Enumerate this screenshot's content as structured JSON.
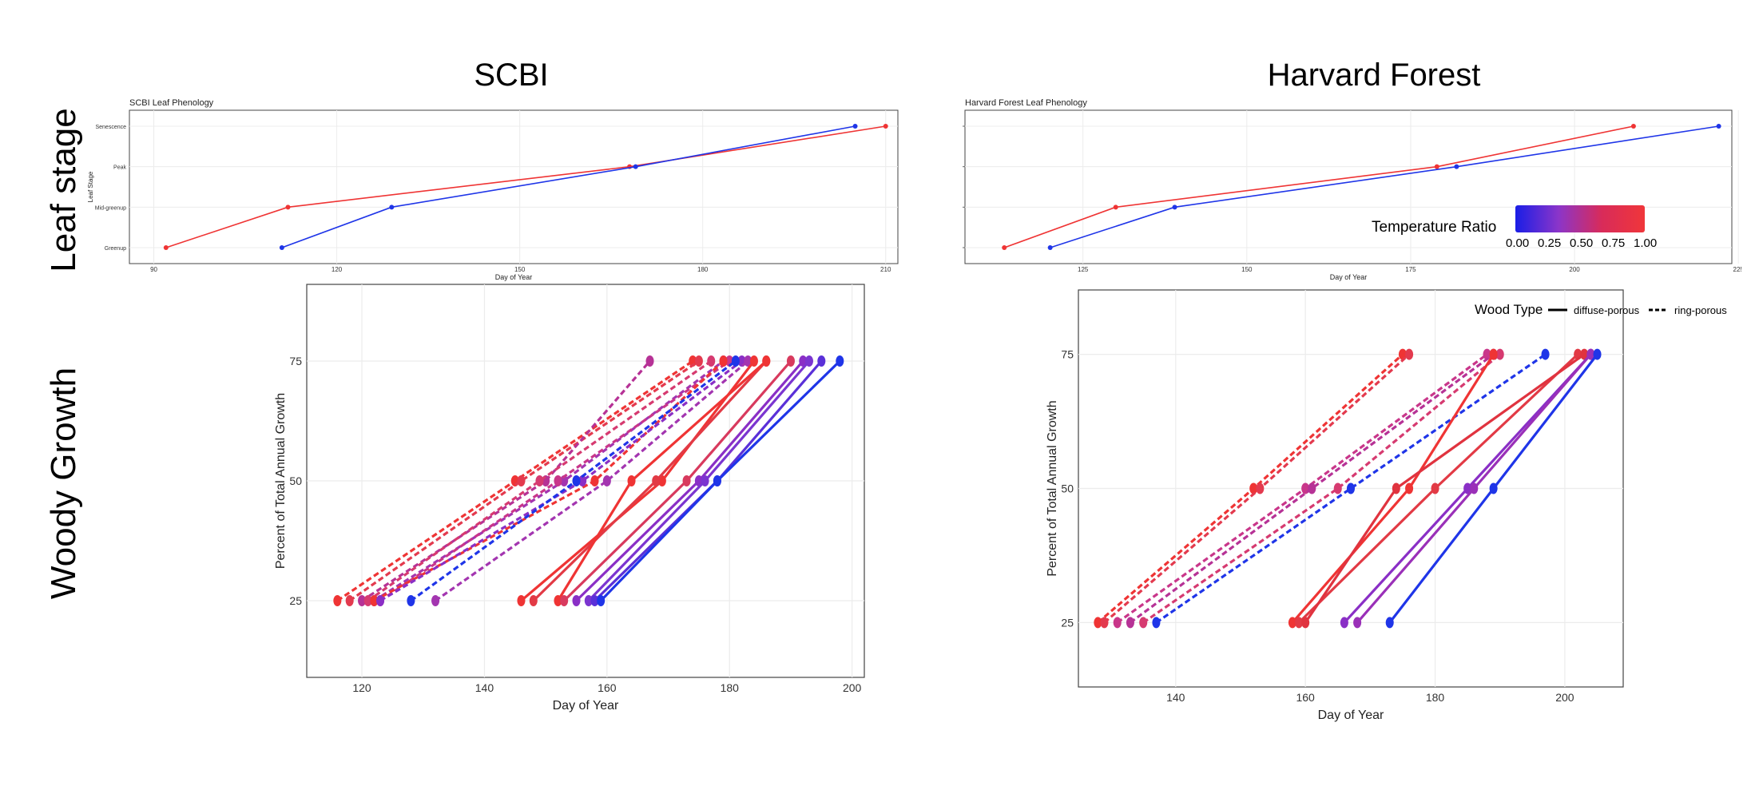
{
  "columns": [
    "SCBI",
    "Harvard Forest"
  ],
  "rows": [
    "Leaf stage",
    "Woody Growth"
  ],
  "colors": {
    "blue": "#1f35e8",
    "red": "#ef3434",
    "purple": "#8a2fc6",
    "magenta": "#b63296",
    "grid": "#ececec"
  },
  "legend": {
    "temperature_title": "Temperature Ratio",
    "temperature_ticks": [
      "0.00",
      "0.25",
      "0.50",
      "0.75",
      "1.00"
    ],
    "wood_title": "Wood Type",
    "wood_items": [
      "diffuse-porous",
      "ring-porous"
    ]
  },
  "chart_data": [
    {
      "id": "scbi-leaf",
      "type": "line",
      "title": "SCBI Leaf Phenology",
      "xlabel": "Day of Year",
      "ylabel": "Leaf Stage",
      "xlim": [
        86,
        212
      ],
      "xticks": [
        90,
        120,
        150,
        180,
        210
      ],
      "categories": [
        "Greenup",
        "Mid-greenup",
        "Peak",
        "Senescence"
      ],
      "series": [
        {
          "color": "#ef3434",
          "x": [
            92,
            112,
            168,
            210
          ]
        },
        {
          "color": "#1f35e8",
          "x": [
            111,
            129,
            169,
            205
          ]
        }
      ]
    },
    {
      "id": "hf-leaf",
      "type": "line",
      "title": "Harvard Forest Leaf Phenology",
      "xlabel": "Day of Year",
      "ylabel": "",
      "xlim": [
        107,
        224
      ],
      "xticks": [
        125,
        150,
        175,
        200,
        225
      ],
      "categories": [
        "",
        "",
        "",
        ""
      ],
      "series": [
        {
          "color": "#ef3434",
          "x": [
            113,
            130,
            179,
            209
          ]
        },
        {
          "color": "#1f35e8",
          "x": [
            120,
            139,
            182,
            222
          ]
        }
      ]
    },
    {
      "id": "scbi-woody",
      "type": "line",
      "xlabel": "Day of Year",
      "ylabel": "Percent of Total Annual Growth",
      "xlim": [
        111,
        202
      ],
      "ylim": [
        9,
        91
      ],
      "xticks": [
        120,
        140,
        160,
        180,
        200
      ],
      "yticks": [
        25,
        50,
        75
      ],
      "series": [
        {
          "style": "ring-porous",
          "color": "#ef3434",
          "x": [
            116,
            145,
            174
          ]
        },
        {
          "style": "ring-porous",
          "color": "#e33a4e",
          "x": [
            118,
            146,
            175
          ]
        },
        {
          "style": "ring-porous",
          "color": "#b63296",
          "x": [
            120,
            150,
            167
          ]
        },
        {
          "style": "ring-porous",
          "color": "#d63a70",
          "x": [
            121,
            149,
            177
          ]
        },
        {
          "style": "ring-porous",
          "color": "#a335b0",
          "x": [
            122,
            153,
            179
          ]
        },
        {
          "style": "ring-porous",
          "color": "#c9368a",
          "x": [
            123,
            152,
            180
          ]
        },
        {
          "style": "ring-porous",
          "color": "#ef3434",
          "x": [
            122,
            158,
            179
          ]
        },
        {
          "style": "ring-porous",
          "color": "#8a2fc6",
          "x": [
            123,
            156,
            182
          ]
        },
        {
          "style": "ring-porous",
          "color": "#1f35e8",
          "x": [
            128,
            155,
            181
          ]
        },
        {
          "style": "ring-porous",
          "color": "#a335b0",
          "x": [
            132,
            160,
            183
          ]
        },
        {
          "style": "diffuse-porous",
          "color": "#ef3434",
          "x": [
            146,
            169,
            184
          ]
        },
        {
          "style": "diffuse-porous",
          "color": "#e23a45",
          "x": [
            148,
            168,
            186
          ]
        },
        {
          "style": "diffuse-porous",
          "color": "#ef3434",
          "x": [
            152,
            164,
            186
          ]
        },
        {
          "style": "diffuse-porous",
          "color": "#d83a5e",
          "x": [
            153,
            173,
            190
          ]
        },
        {
          "style": "diffuse-porous",
          "color": "#8a2fc6",
          "x": [
            155,
            175,
            192
          ]
        },
        {
          "style": "diffuse-porous",
          "color": "#7b35d0",
          "x": [
            157,
            176,
            193
          ]
        },
        {
          "style": "diffuse-porous",
          "color": "#5a30d8",
          "x": [
            158,
            178,
            195
          ]
        },
        {
          "style": "diffuse-porous",
          "color": "#1f35e8",
          "x": [
            159,
            178,
            198
          ]
        }
      ]
    },
    {
      "id": "hf-woody",
      "type": "line",
      "xlabel": "Day of Year",
      "ylabel": "Percent of Total Annual Growth",
      "xlim": [
        125,
        209
      ],
      "ylim": [
        13,
        87
      ],
      "xticks": [
        140,
        160,
        180,
        200
      ],
      "yticks": [
        25,
        50,
        75
      ],
      "series": [
        {
          "style": "ring-porous",
          "color": "#ef3434",
          "x": [
            128,
            152,
            175
          ]
        },
        {
          "style": "ring-porous",
          "color": "#e33a4e",
          "x": [
            129,
            153,
            176
          ]
        },
        {
          "style": "ring-porous",
          "color": "#c9368a",
          "x": [
            131,
            160,
            188
          ]
        },
        {
          "style": "ring-porous",
          "color": "#b63296",
          "x": [
            133,
            161,
            189
          ]
        },
        {
          "style": "ring-porous",
          "color": "#d63a70",
          "x": [
            135,
            165,
            190
          ]
        },
        {
          "style": "ring-porous",
          "color": "#1f35e8",
          "x": [
            137,
            167,
            197
          ]
        },
        {
          "style": "diffuse-porous",
          "color": "#ef3434",
          "x": [
            158,
            176,
            189
          ]
        },
        {
          "style": "diffuse-porous",
          "color": "#e23a45",
          "x": [
            159,
            180,
            202
          ]
        },
        {
          "style": "diffuse-porous",
          "color": "#e0333f",
          "x": [
            160,
            174,
            203
          ]
        },
        {
          "style": "diffuse-porous",
          "color": "#8a2fc6",
          "x": [
            166,
            185,
            204
          ]
        },
        {
          "style": "diffuse-porous",
          "color": "#9a30b8",
          "x": [
            168,
            186,
            204
          ]
        },
        {
          "style": "diffuse-porous",
          "color": "#1f35e8",
          "x": [
            173,
            189,
            205
          ]
        }
      ]
    }
  ]
}
